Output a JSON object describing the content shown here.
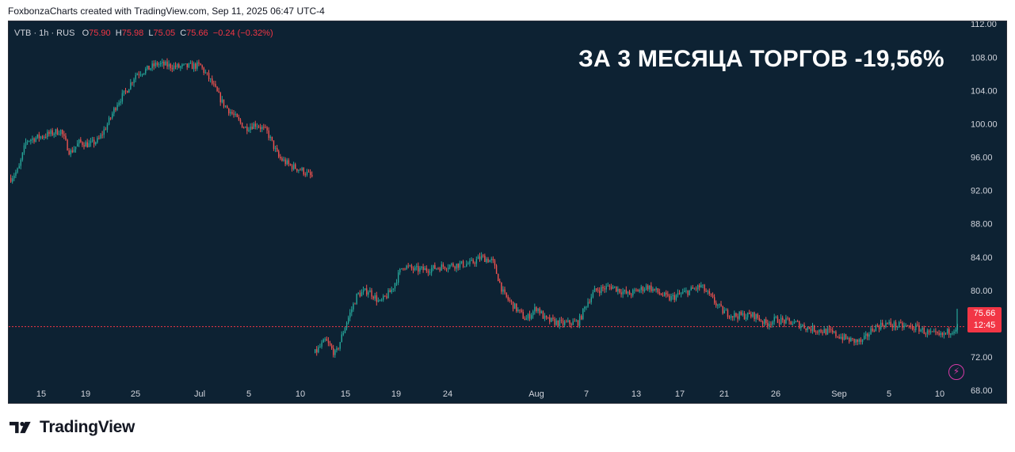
{
  "header": {
    "attribution": "FoxbonzaCharts created with TradingView.com, Sep 11, 2025 06:47 UTC-4"
  },
  "legend": {
    "symbol": "VTB · 1h · RUS",
    "open_label": "O",
    "open": "75.90",
    "high_label": "H",
    "high": "75.98",
    "low_label": "L",
    "low": "75.05",
    "close_label": "C",
    "close": "75.66",
    "change": "−0.24 (−0.32%)"
  },
  "overlay_title": "ЗА 3 МЕСЯЦА ТОРГОВ -19,56%",
  "price_badge": {
    "price": "75.66",
    "countdown": "12:45"
  },
  "brand": {
    "name": "TradingView",
    "logo_icon": "tradingview-logo-icon"
  },
  "lightning_icon": "lightning-icon",
  "colors": {
    "background": "#0d2233",
    "up": "#26a69a",
    "down": "#ef5350",
    "axis_text": "#d1d4dc",
    "price_line": "#f23645",
    "badge": "#f23645"
  },
  "chart_data": {
    "type": "candlestick",
    "interval": "1h",
    "symbol": "VTB",
    "y_ticks": [
      112,
      108,
      104,
      100,
      96,
      92,
      88,
      84,
      80,
      76,
      72,
      68
    ],
    "y_tick_labels": [
      "112.00",
      "108.00",
      "104.00",
      "100.00",
      "96.00",
      "92.00",
      "88.00",
      "84.00",
      "80.00",
      "76.00",
      "72.00",
      "68.00"
    ],
    "ylim": [
      66.5,
      112.3
    ],
    "x_tick_labels": [
      "15",
      "19",
      "25",
      "Jul",
      "5",
      "10",
      "15",
      "19",
      "24",
      "Aug",
      "7",
      "13",
      "17",
      "21",
      "26",
      "Sep",
      "5",
      "10"
    ],
    "last_price": 75.66,
    "gap_after_date": "Jul 11",
    "path_before_gap": [
      [
        "Jun 11",
        93.5
      ],
      [
        "Jun 12",
        94.5
      ],
      [
        "Jun 13",
        98.0
      ],
      [
        "Jun 15",
        98.5
      ],
      [
        "Jun 17",
        99.2
      ],
      [
        "Jun 18",
        96.5
      ],
      [
        "Jun 19",
        97.8
      ],
      [
        "Jun 20",
        97.5
      ],
      [
        "Jun 21",
        98.0
      ],
      [
        "Jun 22",
        100.0
      ],
      [
        "Jun 23",
        102.5
      ],
      [
        "Jun 24",
        104.0
      ],
      [
        "Jun 25",
        106.0
      ],
      [
        "Jun 26",
        106.5
      ],
      [
        "Jun 27",
        107.2
      ],
      [
        "Jun 29",
        106.8
      ],
      [
        "Jul 1",
        107.0
      ],
      [
        "Jul 2",
        105.0
      ],
      [
        "Jul 3",
        102.5
      ],
      [
        "Jul 4",
        101.0
      ],
      [
        "Jul 5",
        99.5
      ],
      [
        "Jul 6",
        100.0
      ],
      [
        "Jul 7",
        99.0
      ],
      [
        "Jul 8",
        96.0
      ],
      [
        "Jul 9",
        95.0
      ],
      [
        "Jul 10",
        94.5
      ],
      [
        "Jul 11",
        93.5
      ]
    ],
    "path_after_gap": [
      [
        "Jul 12",
        72.5
      ],
      [
        "Jul 13",
        74.0
      ],
      [
        "Jul 14",
        72.3
      ],
      [
        "Jul 15",
        76.0
      ],
      [
        "Jul 16",
        79.5
      ],
      [
        "Jul 17",
        80.0
      ],
      [
        "Jul 18",
        78.5
      ],
      [
        "Jul 19",
        80.0
      ],
      [
        "Jul 20",
        83.0
      ],
      [
        "Jul 21",
        82.5
      ],
      [
        "Jul 22",
        82.5
      ],
      [
        "Jul 24",
        83.0
      ],
      [
        "Jul 26",
        83.2
      ],
      [
        "Jul 27",
        84.0
      ],
      [
        "Jul 28",
        83.5
      ],
      [
        "Jul 29",
        79.5
      ],
      [
        "Jul 30",
        78.0
      ],
      [
        "Jul 31",
        76.5
      ],
      [
        "Aug 1",
        78.0
      ],
      [
        "Aug 2",
        76.5
      ],
      [
        "Aug 4",
        76.0
      ],
      [
        "Aug 6",
        76.2
      ],
      [
        "Aug 7",
        78.5
      ],
      [
        "Aug 8",
        80.0
      ],
      [
        "Aug 10",
        80.5
      ],
      [
        "Aug 11",
        80.0
      ],
      [
        "Aug 12",
        79.5
      ],
      [
        "Aug 14",
        80.5
      ],
      [
        "Aug 16",
        79.0
      ],
      [
        "Aug 18",
        80.0
      ],
      [
        "Aug 19",
        80.5
      ],
      [
        "Aug 20",
        79.0
      ],
      [
        "Aug 21",
        77.5
      ],
      [
        "Aug 22",
        77.0
      ],
      [
        "Aug 24",
        77.0
      ],
      [
        "Aug 25",
        76.0
      ],
      [
        "Aug 26",
        76.5
      ],
      [
        "Aug 28",
        76.0
      ],
      [
        "Aug 29",
        75.5
      ],
      [
        "Aug 31",
        75.0
      ],
      [
        "Sep 1",
        74.5
      ],
      [
        "Sep 2",
        74.0
      ],
      [
        "Sep 3",
        73.8
      ],
      [
        "Sep 4",
        75.5
      ],
      [
        "Sep 5",
        76.0
      ],
      [
        "Sep 6",
        75.8
      ],
      [
        "Sep 8",
        75.5
      ],
      [
        "Sep 9",
        74.8
      ],
      [
        "Sep 10",
        74.5
      ],
      [
        "Sep 11",
        75.66
      ]
    ],
    "final_spike_high": 77.8
  }
}
